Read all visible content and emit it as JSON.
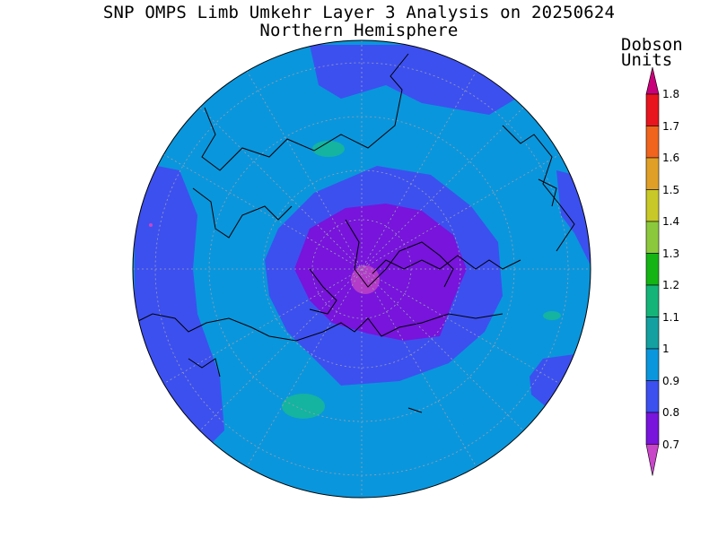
{
  "title": "SNP OMPS Limb Umkehr Layer 3 Analysis on 20250624",
  "subtitle": "Northern Hemisphere",
  "colorbar": {
    "units_line1": "Dobson",
    "units_line2": "Units",
    "ticks": [
      "1.8",
      "1.7",
      "1.6",
      "1.5",
      "1.4",
      "1.3",
      "1.2",
      "1.1",
      "1",
      "0.9",
      "0.8",
      "0.7"
    ],
    "colors": [
      "#c8007a",
      "#e8141e",
      "#f0641e",
      "#e0a028",
      "#c8c828",
      "#8cc83c",
      "#14b414",
      "#14b478",
      "#14a0a0",
      "#0a96dc",
      "#3c50f0",
      "#7814dc",
      "#c846c8"
    ]
  },
  "map": {
    "projection": "north polar stereographic",
    "levels_colors": {
      "below_0.7": "#b43cc8",
      "0.7_0.8": "#7814dc",
      "0.8_0.9": "#3c50f0",
      "0.9_1.0": "#0a96dc",
      "1.0_1.1": "#14b4a0"
    }
  }
}
